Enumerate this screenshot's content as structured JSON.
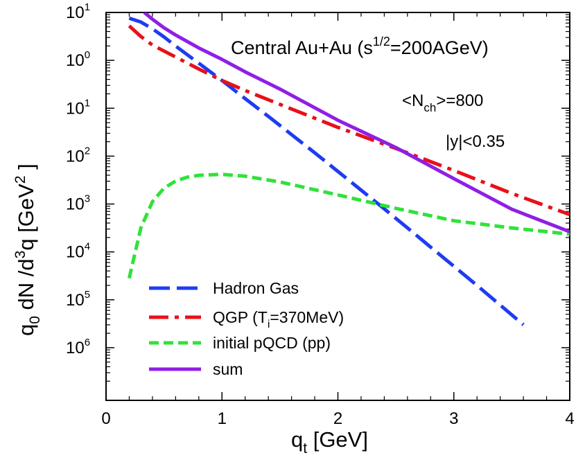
{
  "chart_data": {
    "type": "line",
    "title": "Central Au+Au (s^{1/2}=200AGeV)",
    "title_parts": {
      "main": "Central Au+Au (s",
      "sup": "1/2",
      "tail": "=200AGeV)"
    },
    "annotations": {
      "nch": {
        "pre": "<N",
        "sub": "ch",
        "post": ">=800"
      },
      "rapidity": "|y|<0.35"
    },
    "xlabel": {
      "main": "q",
      "sub": "t",
      "unit": " [GeV]"
    },
    "ylabel": {
      "q": "q",
      "sub0": "0",
      "mid": " dN /d",
      "sup3": "3",
      "q2": "q  [GeV",
      "sup2": "2",
      "close": " ]"
    },
    "xlim": [
      0,
      4
    ],
    "ylim_log10": [
      -7.1,
      1.0
    ],
    "xticks": [
      {
        "v": 0,
        "label": "0"
      },
      {
        "v": 1,
        "label": "1"
      },
      {
        "v": 2,
        "label": "2"
      },
      {
        "v": 3,
        "label": "3"
      },
      {
        "v": 4,
        "label": "4"
      }
    ],
    "yticks": [
      {
        "exp": 1,
        "base": "10",
        "sup": "1"
      },
      {
        "exp": 0,
        "base": "10",
        "sup": "0"
      },
      {
        "exp": -1,
        "base": "10",
        "sup": "1"
      },
      {
        "exp": -2,
        "base": "10",
        "sup": "2"
      },
      {
        "exp": -3,
        "base": "10",
        "sup": "3"
      },
      {
        "exp": -4,
        "base": "10",
        "sup": "4"
      },
      {
        "exp": -5,
        "base": "10",
        "sup": "5"
      },
      {
        "exp": -6,
        "base": "10",
        "sup": "6"
      }
    ],
    "legend_position": "bottom-left",
    "series": [
      {
        "name": "Hadron Gas",
        "color": "#1e3cf0",
        "dash": "long-dash",
        "x": [
          0.2,
          0.3,
          0.4,
          0.5,
          0.6,
          0.8,
          1.0,
          1.2,
          1.4,
          1.6,
          1.8,
          2.0,
          2.2,
          2.4,
          2.6,
          2.8,
          3.0,
          3.2,
          3.4,
          3.6
        ],
        "y_log10": [
          0.88,
          0.8,
          0.66,
          0.49,
          0.3,
          -0.06,
          -0.42,
          -0.8,
          -1.17,
          -1.55,
          -1.93,
          -2.32,
          -2.71,
          -3.1,
          -3.5,
          -3.9,
          -4.3,
          -4.7,
          -5.11,
          -5.52
        ]
      },
      {
        "name": "QGP (T_i=370MeV)",
        "color": "#e8101a",
        "dash": "dash-dot",
        "x": [
          0.2,
          0.3,
          0.4,
          0.6,
          0.8,
          1.0,
          1.2,
          1.5,
          2.0,
          2.5,
          3.0,
          3.5,
          4.0
        ],
        "y_log10": [
          0.72,
          0.5,
          0.32,
          0.07,
          -0.18,
          -0.42,
          -0.63,
          -0.92,
          -1.4,
          -1.84,
          -2.3,
          -2.78,
          -3.22
        ]
      },
      {
        "name": "initial pQCD (pp)",
        "color": "#2fe23a",
        "dash": "short-dash",
        "x": [
          0.2,
          0.3,
          0.4,
          0.5,
          0.6,
          0.7,
          0.8,
          1.0,
          1.2,
          1.5,
          2.0,
          2.5,
          3.0,
          3.5,
          4.0
        ],
        "y_log10": [
          -4.55,
          -3.5,
          -2.95,
          -2.67,
          -2.52,
          -2.44,
          -2.4,
          -2.38,
          -2.42,
          -2.54,
          -2.81,
          -3.09,
          -3.35,
          -3.5,
          -3.63
        ]
      },
      {
        "name": "sum",
        "color": "#8f1fe6",
        "dash": "solid",
        "x": [
          0.33,
          0.4,
          0.5,
          0.6,
          0.8,
          1.0,
          1.2,
          1.5,
          2.0,
          2.5,
          3.0,
          3.5,
          4.0
        ],
        "y_log10": [
          1.0,
          0.86,
          0.68,
          0.53,
          0.26,
          0.02,
          -0.24,
          -0.6,
          -1.25,
          -1.82,
          -2.47,
          -3.11,
          -3.58
        ]
      }
    ],
    "legend_labels": {
      "hadron": "Hadron Gas",
      "qgp_pre": "QGP (T",
      "qgp_sub": "i",
      "qgp_post": "=370MeV)",
      "pqcd": "initial pQCD (pp)",
      "sum": "sum"
    }
  }
}
